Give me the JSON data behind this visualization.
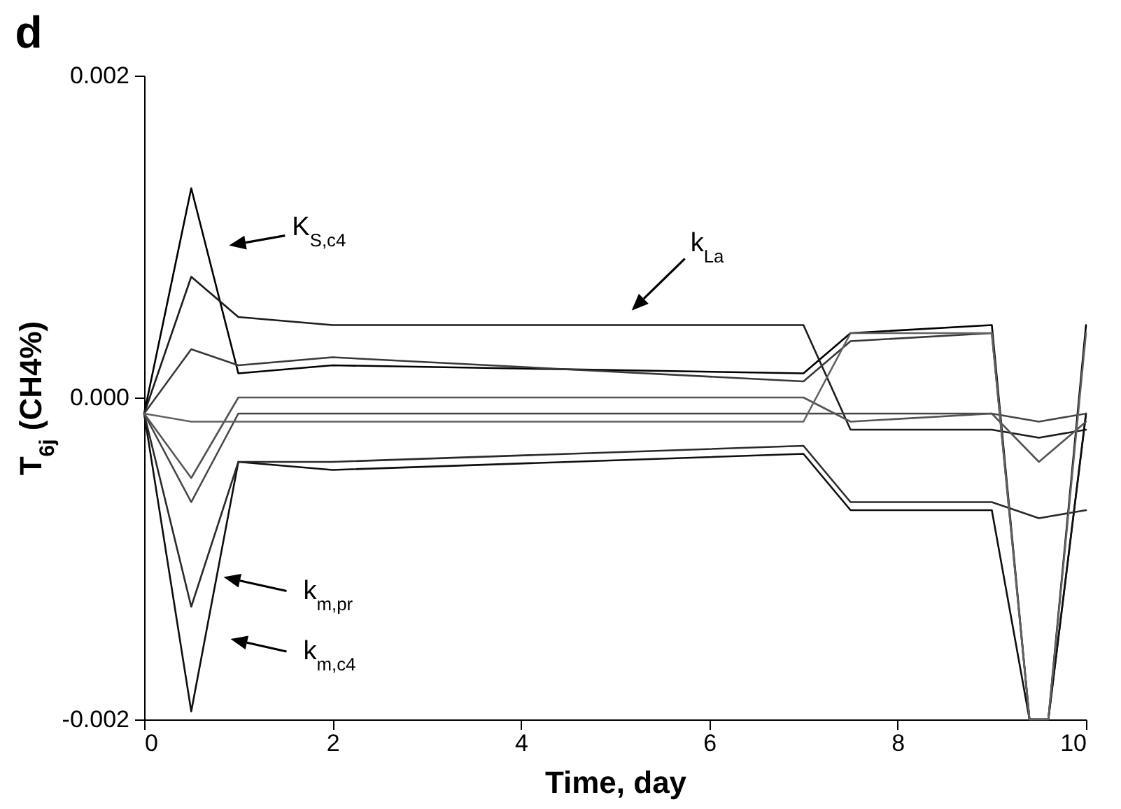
{
  "chart_data": {
    "type": "line",
    "title": "d",
    "xlabel": "Time, day",
    "ylabel": "T$_{6j}$ (CH4%)",
    "xlim": [
      0,
      10
    ],
    "xticks": [
      0,
      2,
      4,
      6,
      8,
      10
    ],
    "ylim": [
      -0.002,
      0.002
    ],
    "yticks": [
      {
        "value": -0.002,
        "label": "-0.002"
      },
      {
        "value": 0,
        "label": "0.000"
      },
      {
        "value": 0.002,
        "label": "0.002"
      }
    ],
    "grid": false,
    "legend": false,
    "marker": "none",
    "line_style": "solid",
    "series": [
      {
        "color": "#000000",
        "x": [
          0,
          0.5,
          1,
          2,
          7,
          7.5,
          9,
          9.4,
          9.6,
          10
        ],
        "values": [
          -0.0001,
          0.0013,
          0.00015,
          0.0002,
          0.00015,
          0.0004,
          0.00045,
          -0.002,
          -0.002,
          0.00045
        ]
      },
      {
        "color": "#1c1c1c",
        "x": [
          0,
          0.5,
          1,
          2,
          7,
          7.5,
          9,
          9.5,
          10
        ],
        "values": [
          -0.0001,
          0.00075,
          0.0005,
          0.00045,
          0.00045,
          -0.0002,
          -0.0002,
          -0.00025,
          -0.0002
        ]
      },
      {
        "color": "#383838",
        "x": [
          0,
          0.5,
          1,
          2,
          7,
          7.5,
          9,
          9.4,
          9.6,
          10
        ],
        "values": [
          -0.0001,
          0.0003,
          0.0002,
          0.00025,
          0.0001,
          0.00035,
          0.0004,
          -0.002,
          -0.002,
          -0.0001
        ]
      },
      {
        "color": "#0e0e0e",
        "x": [
          0,
          0.5,
          1,
          2,
          7,
          7.5,
          9,
          9.4,
          9.6,
          10
        ],
        "values": [
          -0.0001,
          -0.00195,
          -0.0004,
          -0.00045,
          -0.00035,
          -0.0007,
          -0.0007,
          -0.002,
          -0.002,
          -0.0001
        ]
      },
      {
        "color": "#2a2a2a",
        "x": [
          0,
          0.5,
          1,
          2,
          7,
          7.5,
          9,
          9.5,
          10
        ],
        "values": [
          -0.0001,
          -0.0013,
          -0.0004,
          -0.0004,
          -0.0003,
          -0.00065,
          -0.00065,
          -0.00075,
          -0.0007
        ]
      },
      {
        "color": "#464646",
        "x": [
          0,
          0.5,
          1,
          2,
          7,
          7.5,
          9,
          9.5,
          10
        ],
        "values": [
          -0.0001,
          -0.00065,
          -0.0001,
          -0.0001,
          -0.0001,
          -0.0001,
          -0.0001,
          -0.00015,
          -0.0001
        ]
      },
      {
        "color": "#545454",
        "x": [
          0,
          0.5,
          1,
          2,
          7,
          7.5,
          9,
          9.5,
          10
        ],
        "values": [
          -0.0001,
          -0.0005,
          0,
          0,
          0,
          -0.00015,
          -0.0001,
          -0.0004,
          -0.00015
        ]
      },
      {
        "color": "#626262",
        "x": [
          0,
          0.5,
          1,
          2,
          7,
          7.5,
          9,
          9.4,
          9.6,
          10
        ],
        "values": [
          -0.0001,
          -0.00015,
          -0.00015,
          -0.00015,
          -0.00015,
          0.0004,
          0.0004,
          -0.002,
          -0.002,
          0.0004
        ]
      }
    ],
    "annotations": [
      "K$_{S,c4}$",
      "k$_{La}$",
      "k$_{m,pr}$",
      "k$_{m,c4}$"
    ]
  }
}
